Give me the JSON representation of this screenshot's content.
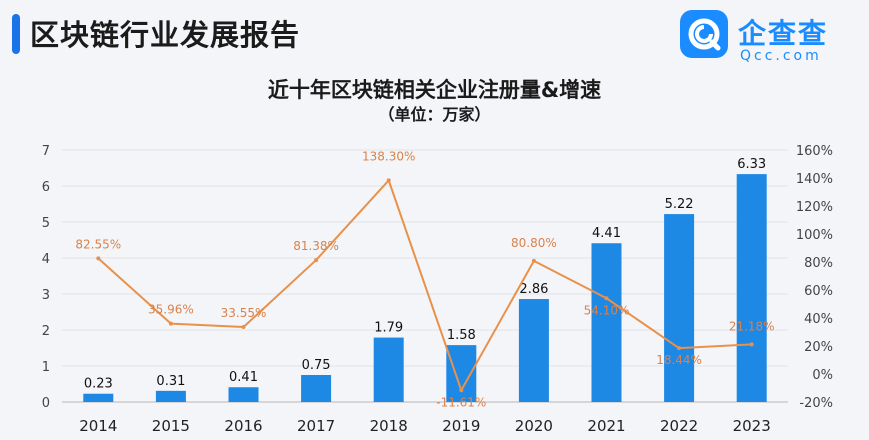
{
  "header": {
    "title": "区块链行业发展报告"
  },
  "logo": {
    "name_cn": "企查查",
    "name_en": "Qcc.com",
    "icon": "qcc-logo-icon"
  },
  "colors": {
    "accent": "#1a73e8",
    "bar": "#1e88e5",
    "line": "#e8914a",
    "line_label": "#d9824a",
    "logo": "#1a8cff"
  },
  "chart_data": {
    "type": "bar",
    "title": "近十年区块链相关企业注册量&增速",
    "subtitle": "（单位：万家）",
    "categories": [
      "2014",
      "2015",
      "2016",
      "2017",
      "2018",
      "2019",
      "2020",
      "2021",
      "2022",
      "2023"
    ],
    "series": [
      {
        "type": "bar",
        "axis": "left",
        "values": [
          0.23,
          0.31,
          0.41,
          0.75,
          1.79,
          1.58,
          2.86,
          4.41,
          5.22,
          6.33
        ],
        "labels": [
          "0.23",
          "0.31",
          "0.41",
          "0.75",
          "1.79",
          "1.58",
          "2.86",
          "4.41",
          "5.22",
          "6.33"
        ]
      },
      {
        "type": "line",
        "axis": "right",
        "values": [
          82.55,
          35.96,
          33.55,
          81.38,
          138.3,
          -11.61,
          80.8,
          54.1,
          18.44,
          21.18
        ],
        "labels": [
          "82.55%",
          "35.96%",
          "33.55%",
          "81.38%",
          "138.30%",
          "-11.61%",
          "80.80%",
          "54.10%",
          "18.44%",
          "21.18%"
        ]
      }
    ],
    "y_left": {
      "min": 0,
      "max": 7,
      "ticks": [
        "0",
        "1",
        "2",
        "3",
        "4",
        "5",
        "6",
        "7"
      ]
    },
    "y_right": {
      "min": -20,
      "max": 160,
      "ticks": [
        "-20%",
        "0%",
        "20%",
        "40%",
        "60%",
        "80%",
        "100%",
        "120%",
        "140%",
        "160%"
      ]
    },
    "grid": true,
    "legend": "none"
  }
}
